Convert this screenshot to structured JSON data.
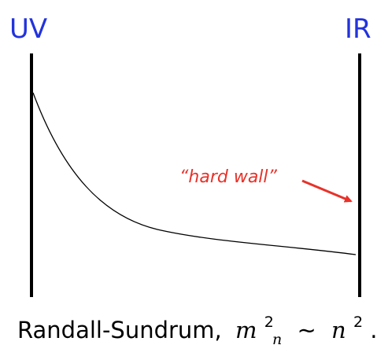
{
  "labels": {
    "left": "UV",
    "right": "IR"
  },
  "annotation": "“hard wall”",
  "caption": {
    "text": "Randall-Sundrum,",
    "math": {
      "base": "m",
      "sub": "n",
      "sup": "2",
      "relation": "∼",
      "rhs": "n",
      "rhs_sup": "2"
    },
    "end": "."
  }
}
